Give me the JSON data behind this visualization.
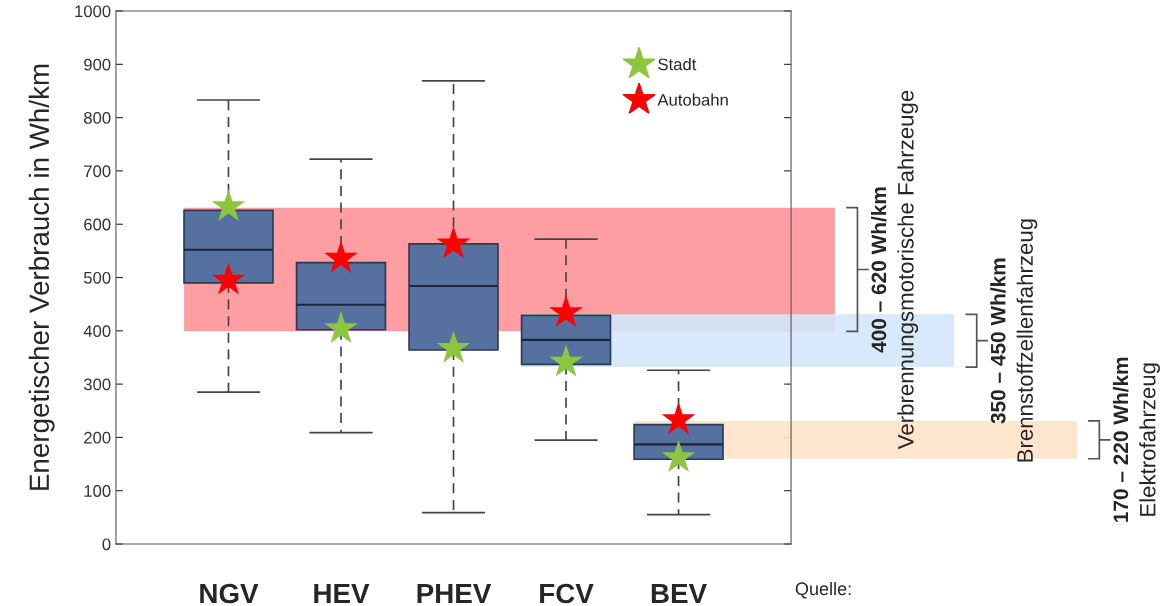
{
  "chart_data": {
    "type": "box",
    "ylabel": "Energetischer Verbrauch in Wh/km",
    "categories": [
      "NGV",
      "HEV",
      "PHEV",
      "FCV",
      "BEV"
    ],
    "boxes": [
      {
        "low": 285,
        "q1": 490,
        "median": 552,
        "q3": 626,
        "high": 833
      },
      {
        "low": 209,
        "q1": 402,
        "median": 449,
        "q3": 528,
        "high": 722
      },
      {
        "low": 59,
        "q1": 364,
        "median": 484,
        "q3": 563,
        "high": 869
      },
      {
        "low": 195,
        "q1": 337,
        "median": 383,
        "q3": 429,
        "high": 572
      },
      {
        "low": 55,
        "q1": 159,
        "median": 187,
        "q3": 224,
        "high": 326
      }
    ],
    "color": "#5670a0",
    "series": [
      {
        "type": "scatter",
        "name": "Stadt",
        "color": "#8cc63f",
        "x": [
          "NGV",
          "HEV",
          "PHEV",
          "FCV",
          "BEV"
        ],
        "values": [
          633,
          404,
          367,
          341,
          162
        ]
      },
      {
        "type": "scatter",
        "name": "Autobahn",
        "color": "#ff0000",
        "x": [
          "NGV",
          "HEV",
          "PHEV",
          "FCV",
          "BEV"
        ],
        "values": [
          495,
          536,
          563,
          434,
          233
        ]
      }
    ],
    "marker": "star",
    "bands": [
      {
        "axis": "y",
        "from": 399,
        "to": 631,
        "label": "400 – 620 Wh/km\nVerbrennungsmotorische Fahrzeuge",
        "color": "#ff9ea2"
      },
      {
        "axis": "y",
        "from": 332,
        "to": 431,
        "label": "350 – 450 Wh/km\nBrennstoffzellenfahrzeug",
        "color": "#d3e7fb"
      },
      {
        "axis": "y",
        "from": 160,
        "to": 231,
        "label": "170 – 220 Wh/km\nElektrofahrzeug",
        "color": "#fde3c8"
      }
    ],
    "ylim": [
      0,
      1000
    ],
    "yticks": [
      0,
      100,
      200,
      300,
      400,
      500,
      600,
      700,
      800,
      900,
      1000
    ],
    "grid": false,
    "legend": "top right",
    "annotations": [
      "Quelle:"
    ]
  }
}
